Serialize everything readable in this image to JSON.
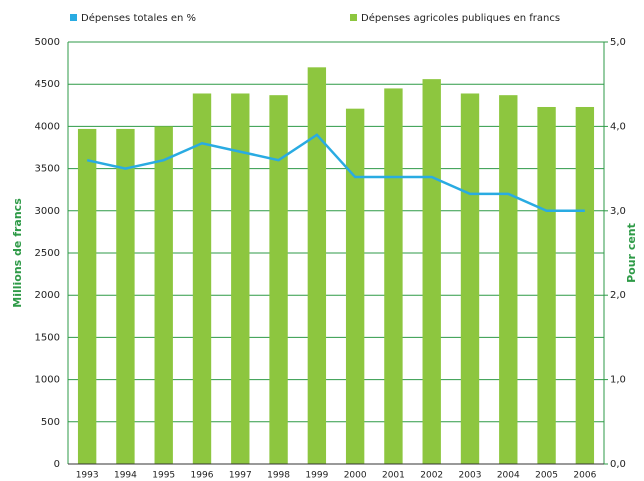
{
  "chart_data": {
    "type": "bar-line",
    "categories": [
      "1993",
      "1994",
      "1995",
      "1996",
      "1997",
      "1998",
      "1999",
      "2000",
      "2001",
      "2002",
      "2003",
      "2004",
      "2005",
      "2006"
    ],
    "series": [
      {
        "name": "Dépenses agricoles publiques en francs",
        "color": "#8dc63f",
        "type": "bar",
        "axis": "y",
        "values": [
          3970,
          3970,
          4000,
          4390,
          4390,
          4370,
          4700,
          4210,
          4450,
          4560,
          4390,
          4370,
          4230,
          4230
        ]
      },
      {
        "name": "Dépenses totales en %",
        "color": "#29abe2",
        "type": "line",
        "axis": "y2",
        "values": [
          3.6,
          3.5,
          3.6,
          3.8,
          3.7,
          3.6,
          3.9,
          3.4,
          3.4,
          3.4,
          3.2,
          3.2,
          3.0,
          3.0
        ]
      }
    ],
    "ylabel": "Millions de francs",
    "y2label": "Pour cent",
    "ylim": [
      0,
      5000
    ],
    "yticks": [
      0,
      500,
      1000,
      1500,
      2000,
      2500,
      3000,
      3500,
      4000,
      4500,
      5000
    ],
    "y2lim": [
      0,
      5
    ],
    "y2ticks": [
      {
        "value": 0,
        "label": "0,0"
      },
      {
        "value": 1,
        "label": "1,0"
      },
      {
        "value": 2,
        "label": "2,0"
      },
      {
        "value": 3,
        "label": "3,0"
      },
      {
        "value": 4,
        "label": "4,0"
      },
      {
        "value": 5,
        "label": "5,0"
      }
    ],
    "grid": true,
    "axis_color": "#2e9a47"
  }
}
